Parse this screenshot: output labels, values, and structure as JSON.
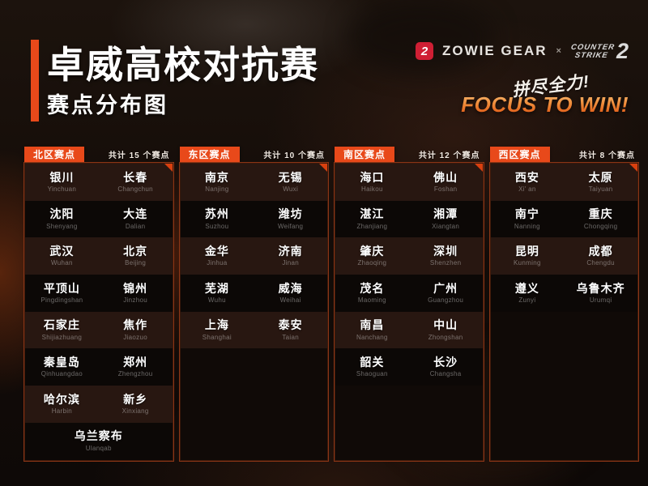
{
  "page": {
    "title": "卓威高校对抗赛",
    "subtitle": "赛点分布图"
  },
  "branding": {
    "zowie_icon_glyph": "2",
    "zowie_logo_text": "ZOWIE GEAR",
    "separator": "×",
    "cs_logo_line1": "COUNTER",
    "cs_logo_line2": "STRIKE",
    "cs_logo_number": "2",
    "slogan_cn": "拼尽全力!",
    "slogan_en": "FOCUS TO WIN!"
  },
  "colors": {
    "accent_orange": "#e8491a",
    "focus_gradient_top": "#f7bd78",
    "focus_gradient_bottom": "#dd5614",
    "zowie_red": "#cf1f34",
    "panel_border": "#8a3516",
    "row_brown": "#281711",
    "row_dark": "#0c0806"
  },
  "regions": [
    {
      "name": "北区赛点",
      "count_label": "共计 15 个赛点",
      "rows": [
        [
          {
            "cn": "银川",
            "en": "Yinchuan"
          },
          {
            "cn": "长春",
            "en": "Changchun"
          }
        ],
        [
          {
            "cn": "沈阳",
            "en": "Shenyang"
          },
          {
            "cn": "大连",
            "en": "Dalian"
          }
        ],
        [
          {
            "cn": "武汉",
            "en": "Wuhan"
          },
          {
            "cn": "北京",
            "en": "Beijing"
          }
        ],
        [
          {
            "cn": "平顶山",
            "en": "Pingdingshan"
          },
          {
            "cn": "锦州",
            "en": "Jinzhou"
          }
        ],
        [
          {
            "cn": "石家庄",
            "en": "Shijiazhuang"
          },
          {
            "cn": "焦作",
            "en": "Jiaozuo"
          }
        ],
        [
          {
            "cn": "秦皇岛",
            "en": "Qinhuangdao"
          },
          {
            "cn": "郑州",
            "en": "Zhengzhou"
          }
        ],
        [
          {
            "cn": "哈尔滨",
            "en": "Harbin"
          },
          {
            "cn": "新乡",
            "en": "Xinxiang"
          }
        ],
        [
          {
            "cn": "乌兰察布",
            "en": "Ulanqab"
          }
        ]
      ]
    },
    {
      "name": "东区赛点",
      "count_label": "共计 10 个赛点",
      "rows": [
        [
          {
            "cn": "南京",
            "en": "Nanjing"
          },
          {
            "cn": "无锡",
            "en": "Wuxi"
          }
        ],
        [
          {
            "cn": "苏州",
            "en": "Suzhou"
          },
          {
            "cn": "潍坊",
            "en": "Weifang"
          }
        ],
        [
          {
            "cn": "金华",
            "en": "Jinhua"
          },
          {
            "cn": "济南",
            "en": "Jinan"
          }
        ],
        [
          {
            "cn": "芜湖",
            "en": "Wuhu"
          },
          {
            "cn": "威海",
            "en": "Weihai"
          }
        ],
        [
          {
            "cn": "上海",
            "en": "Shanghai"
          },
          {
            "cn": "泰安",
            "en": "Taian"
          }
        ]
      ]
    },
    {
      "name": "南区赛点",
      "count_label": "共计 12 个赛点",
      "rows": [
        [
          {
            "cn": "海口",
            "en": "Haikou"
          },
          {
            "cn": "佛山",
            "en": "Foshan"
          }
        ],
        [
          {
            "cn": "湛江",
            "en": "Zhanjiang"
          },
          {
            "cn": "湘潭",
            "en": "Xiangtan"
          }
        ],
        [
          {
            "cn": "肇庆",
            "en": "Zhaoqing"
          },
          {
            "cn": "深圳",
            "en": "Shenzhen"
          }
        ],
        [
          {
            "cn": "茂名",
            "en": "Maoming"
          },
          {
            "cn": "广州",
            "en": "Guangzhou"
          }
        ],
        [
          {
            "cn": "南昌",
            "en": "Nanchang"
          },
          {
            "cn": "中山",
            "en": "Zhongshan"
          }
        ],
        [
          {
            "cn": "韶关",
            "en": "Shaoguan"
          },
          {
            "cn": "长沙",
            "en": "Changsha"
          }
        ]
      ]
    },
    {
      "name": "西区赛点",
      "count_label": "共计 8 个赛点",
      "rows": [
        [
          {
            "cn": "西安",
            "en": "Xi' an"
          },
          {
            "cn": "太原",
            "en": "Taiyuan"
          }
        ],
        [
          {
            "cn": "南宁",
            "en": "Nanning"
          },
          {
            "cn": "重庆",
            "en": "Chongqing"
          }
        ],
        [
          {
            "cn": "昆明",
            "en": "Kunming"
          },
          {
            "cn": "成都",
            "en": "Chengdu"
          }
        ],
        [
          {
            "cn": "遵义",
            "en": "Zunyi"
          },
          {
            "cn": "乌鲁木齐",
            "en": "Urumqi"
          }
        ]
      ]
    }
  ]
}
